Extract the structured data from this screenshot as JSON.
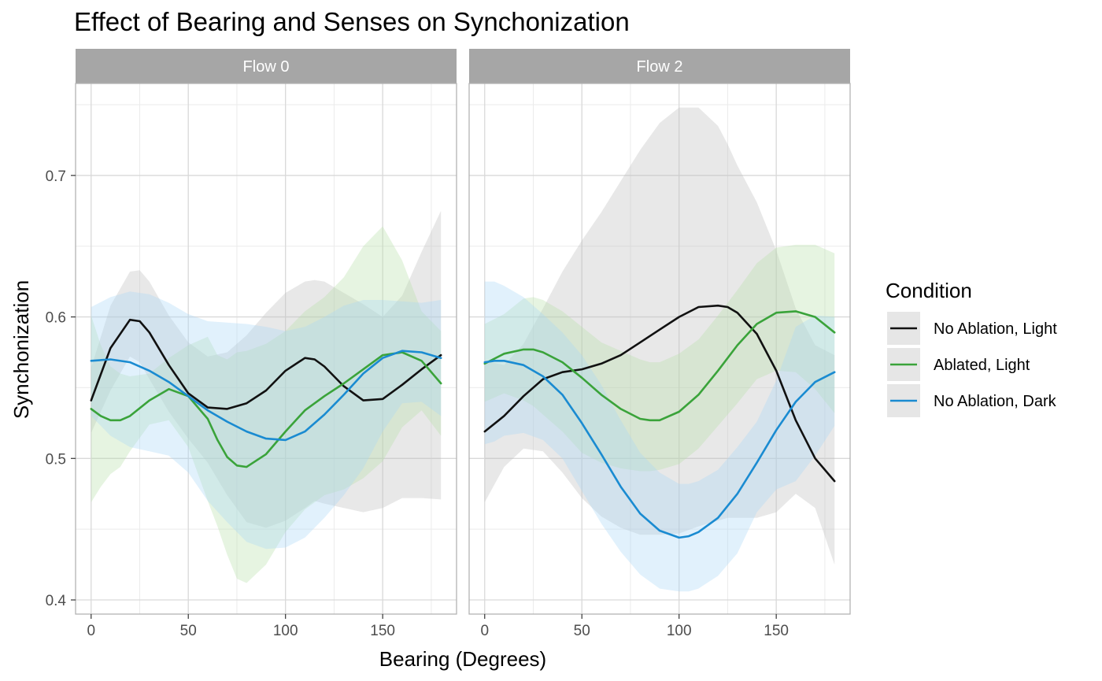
{
  "chart_data": {
    "type": "line",
    "title": "Effect of Bearing and Senses on Synchonization",
    "xlabel": "Bearing (Degrees)",
    "ylabel": "Synchonization",
    "xlim": [
      -8,
      188
    ],
    "ylim": [
      0.39,
      0.765
    ],
    "x_ticks": [
      0,
      50,
      100,
      150
    ],
    "y_ticks": [
      0.4,
      0.5,
      0.6,
      0.7
    ],
    "grid": true,
    "legend": {
      "title": "Condition",
      "position": "right",
      "entries": [
        "No Ablation, Light",
        "Ablated, Light",
        "No Ablation, Dark"
      ]
    },
    "colors": {
      "No Ablation, Light": "#111111",
      "Ablated, Light": "#3aa33a",
      "No Ablation, Dark": "#1a8bd1"
    },
    "ribbon_fills": {
      "No Ablation, Light": "#bdbdbd",
      "Ablated, Light": "#b8dfa8",
      "No Ablation, Dark": "#a8d7f5"
    },
    "panels": [
      {
        "label": "Flow 0",
        "series": [
          {
            "name": "No Ablation, Light",
            "x": [
              0,
              10,
              20,
              25,
              30,
              40,
              50,
              60,
              70,
              80,
              90,
              100,
              110,
              115,
              120,
              130,
              140,
              150,
              160,
              170,
              180
            ],
            "y": [
              0.541,
              0.578,
              0.598,
              0.597,
              0.589,
              0.566,
              0.546,
              0.536,
              0.535,
              0.539,
              0.548,
              0.562,
              0.571,
              0.57,
              0.565,
              0.551,
              0.541,
              0.542,
              0.552,
              0.563,
              0.573
            ],
            "lower": [
              0.518,
              0.548,
              0.572,
              0.568,
              0.556,
              0.533,
              0.514,
              0.497,
              0.474,
              0.455,
              0.451,
              0.456,
              0.465,
              0.47,
              0.468,
              0.465,
              0.462,
              0.465,
              0.472,
              0.472,
              0.471
            ],
            "upper": [
              0.564,
              0.608,
              0.632,
              0.633,
              0.625,
              0.601,
              0.582,
              0.572,
              0.575,
              0.587,
              0.603,
              0.617,
              0.625,
              0.626,
              0.625,
              0.617,
              0.609,
              0.6,
              0.615,
              0.646,
              0.675
            ]
          },
          {
            "name": "Ablated, Light",
            "x": [
              0,
              5,
              10,
              15,
              20,
              30,
              40,
              50,
              60,
              65,
              70,
              75,
              80,
              90,
              100,
              110,
              120,
              130,
              140,
              150,
              160,
              170,
              180
            ],
            "y": [
              0.535,
              0.53,
              0.527,
              0.527,
              0.53,
              0.541,
              0.549,
              0.544,
              0.528,
              0.513,
              0.501,
              0.495,
              0.494,
              0.503,
              0.519,
              0.534,
              0.544,
              0.553,
              0.563,
              0.573,
              0.575,
              0.569,
              0.553
            ],
            "lower": [
              0.469,
              0.48,
              0.489,
              0.494,
              0.505,
              0.524,
              0.527,
              0.508,
              0.47,
              0.452,
              0.432,
              0.415,
              0.412,
              0.425,
              0.448,
              0.464,
              0.474,
              0.478,
              0.486,
              0.498,
              0.522,
              0.534,
              0.516
            ],
            "upper": [
              0.601,
              0.58,
              0.565,
              0.56,
              0.558,
              0.56,
              0.571,
              0.58,
              0.586,
              0.573,
              0.57,
              0.575,
              0.576,
              0.581,
              0.59,
              0.604,
              0.614,
              0.628,
              0.65,
              0.664,
              0.64,
              0.604,
              0.59
            ]
          },
          {
            "name": "No Ablation, Dark",
            "x": [
              0,
              10,
              20,
              30,
              40,
              50,
              60,
              70,
              80,
              90,
              100,
              110,
              120,
              130,
              140,
              150,
              160,
              170,
              180
            ],
            "y": [
              0.569,
              0.57,
              0.568,
              0.562,
              0.554,
              0.544,
              0.534,
              0.526,
              0.519,
              0.514,
              0.513,
              0.519,
              0.531,
              0.545,
              0.56,
              0.571,
              0.576,
              0.575,
              0.571
            ],
            "lower": [
              0.53,
              0.516,
              0.508,
              0.505,
              0.502,
              0.49,
              0.47,
              0.455,
              0.441,
              0.436,
              0.437,
              0.444,
              0.458,
              0.474,
              0.493,
              0.519,
              0.539,
              0.54,
              0.53
            ],
            "upper": [
              0.607,
              0.614,
              0.618,
              0.616,
              0.61,
              0.602,
              0.597,
              0.596,
              0.595,
              0.593,
              0.59,
              0.593,
              0.6,
              0.608,
              0.612,
              0.612,
              0.611,
              0.61,
              0.612
            ]
          }
        ]
      },
      {
        "label": "Flow 2",
        "series": [
          {
            "name": "No Ablation, Light",
            "x": [
              0,
              10,
              20,
              30,
              40,
              50,
              60,
              70,
              80,
              90,
              100,
              110,
              120,
              125,
              130,
              140,
              150,
              160,
              170,
              180
            ],
            "y": [
              0.519,
              0.53,
              0.544,
              0.556,
              0.561,
              0.563,
              0.567,
              0.573,
              0.582,
              0.591,
              0.6,
              0.607,
              0.608,
              0.607,
              0.603,
              0.588,
              0.562,
              0.527,
              0.5,
              0.484
            ],
            "lower": [
              0.469,
              0.494,
              0.507,
              0.505,
              0.49,
              0.472,
              0.459,
              0.451,
              0.446,
              0.446,
              0.447,
              0.452,
              0.456,
              0.458,
              0.458,
              0.458,
              0.462,
              0.475,
              0.465,
              0.425
            ],
            "upper": [
              0.569,
              0.566,
              0.581,
              0.606,
              0.632,
              0.654,
              0.674,
              0.696,
              0.718,
              0.737,
              0.748,
              0.748,
              0.735,
              0.722,
              0.707,
              0.681,
              0.647,
              0.606,
              0.58,
              0.573
            ]
          },
          {
            "name": "Ablated, Light",
            "x": [
              0,
              10,
              20,
              25,
              30,
              40,
              50,
              60,
              70,
              80,
              85,
              90,
              100,
              110,
              120,
              130,
              140,
              150,
              160,
              170,
              180
            ],
            "y": [
              0.567,
              0.574,
              0.577,
              0.577,
              0.575,
              0.568,
              0.557,
              0.545,
              0.535,
              0.528,
              0.527,
              0.527,
              0.533,
              0.545,
              0.562,
              0.58,
              0.595,
              0.603,
              0.604,
              0.6,
              0.589
            ],
            "lower": [
              0.54,
              0.546,
              0.541,
              0.537,
              0.531,
              0.519,
              0.504,
              0.497,
              0.493,
              0.491,
              0.491,
              0.492,
              0.496,
              0.507,
              0.523,
              0.539,
              0.556,
              0.562,
              0.561,
              0.549,
              0.532
            ],
            "upper": [
              0.595,
              0.602,
              0.613,
              0.614,
              0.612,
              0.604,
              0.593,
              0.582,
              0.576,
              0.57,
              0.568,
              0.568,
              0.574,
              0.584,
              0.601,
              0.619,
              0.638,
              0.649,
              0.651,
              0.651,
              0.645
            ]
          },
          {
            "name": "No Ablation, Dark",
            "x": [
              0,
              5,
              10,
              20,
              30,
              40,
              50,
              60,
              70,
              80,
              90,
              100,
              105,
              110,
              120,
              130,
              140,
              150,
              160,
              170,
              180
            ],
            "y": [
              0.568,
              0.569,
              0.569,
              0.566,
              0.558,
              0.545,
              0.525,
              0.503,
              0.48,
              0.461,
              0.449,
              0.444,
              0.445,
              0.448,
              0.458,
              0.475,
              0.497,
              0.52,
              0.54,
              0.554,
              0.561
            ],
            "lower": [
              0.51,
              0.512,
              0.516,
              0.518,
              0.513,
              0.5,
              0.477,
              0.454,
              0.434,
              0.418,
              0.408,
              0.406,
              0.406,
              0.408,
              0.417,
              0.433,
              0.462,
              0.478,
              0.484,
              0.502,
              0.523
            ],
            "upper": [
              0.625,
              0.625,
              0.622,
              0.614,
              0.602,
              0.589,
              0.573,
              0.552,
              0.527,
              0.504,
              0.49,
              0.482,
              0.482,
              0.484,
              0.492,
              0.508,
              0.526,
              0.555,
              0.593,
              0.601,
              0.6
            ]
          }
        ]
      }
    ]
  }
}
